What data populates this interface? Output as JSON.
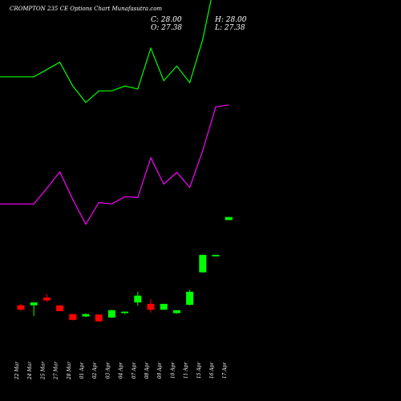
{
  "title": "CROMPTON 235 CE Options  Chart Munafasutra.com",
  "ohlc": {
    "c_label": "C: 28.00",
    "h_label": "H: 28.00",
    "o_label": "O: 27.38",
    "l_label": "L: 27.38"
  },
  "chart_data": {
    "type": "candlestick",
    "title": "CROMPTON 235 CE Options  Chart Munafasutra.com",
    "background": "#000000",
    "up_color": "#00ff00",
    "down_color": "#ff0000",
    "grid": false,
    "legend": "none",
    "ylim": [
      0,
      30
    ],
    "categories": [
      "22 Mar",
      "24 Mar",
      "25 Mar",
      "27 Mar",
      "28 Mar",
      "01 Apr",
      "02 Apr",
      "03 Apr",
      "04 Apr",
      "07 Apr",
      "08 Apr",
      "09 Apr",
      "10 Apr",
      "11 Apr",
      "15 Apr",
      "16 Apr",
      "17 Apr"
    ],
    "candles": [
      {
        "o": 9.8,
        "h": 10.1,
        "l": 8.7,
        "c": 8.9
      },
      {
        "o": 9.8,
        "h": 10.4,
        "l": 7.6,
        "c": 10.4
      },
      {
        "o": 11.4,
        "h": 12.1,
        "l": 10.5,
        "c": 10.8
      },
      {
        "o": 9.8,
        "h": 9.8,
        "l": 8.6,
        "c": 8.6
      },
      {
        "o": 8.0,
        "h": 8.0,
        "l": 6.7,
        "c": 6.8
      },
      {
        "o": 7.5,
        "h": 8.1,
        "l": 7.4,
        "c": 8.0
      },
      {
        "o": 7.9,
        "h": 7.9,
        "l": 6.4,
        "c": 6.5
      },
      {
        "o": 7.3,
        "h": 8.9,
        "l": 7.2,
        "c": 8.8
      },
      {
        "o": 8.2,
        "h": 8.5,
        "l": 8.0,
        "c": 8.5
      },
      {
        "o": 10.4,
        "h": 12.6,
        "l": 9.7,
        "c": 11.8
      },
      {
        "o": 10.1,
        "h": 11.1,
        "l": 8.3,
        "c": 8.9
      },
      {
        "o": 8.9,
        "h": 10.1,
        "l": 8.9,
        "c": 10.1
      },
      {
        "o": 8.2,
        "h": 8.8,
        "l": 8.1,
        "c": 8.8
      },
      {
        "o": 9.9,
        "h": 13.0,
        "l": 9.8,
        "c": 12.6
      },
      {
        "o": 16.6,
        "h": 20.2,
        "l": 16.6,
        "c": 20.2
      },
      {
        "o": 19.9,
        "h": 20.2,
        "l": 19.9,
        "c": 20.2
      },
      {
        "o": 27.38,
        "h": 28.0,
        "l": 27.38,
        "c": 28.0
      }
    ],
    "series": [
      {
        "type": "line",
        "color": "#00ff00",
        "values": [
          56.9,
          56.9,
          58.4,
          59.9,
          55.0,
          51.6,
          54.0,
          54.0,
          55.0,
          54.4,
          62.8,
          56.1,
          59.1,
          55.7,
          64.6,
          77.4,
          77.7
        ]
      },
      {
        "type": "line",
        "color": "#ff00ff",
        "values": [
          30.7,
          30.7,
          33.9,
          37.3,
          31.6,
          26.5,
          31.0,
          30.7,
          32.2,
          32.0,
          40.2,
          34.8,
          37.2,
          34.1,
          41.7,
          50.7,
          51.1
        ]
      }
    ]
  }
}
